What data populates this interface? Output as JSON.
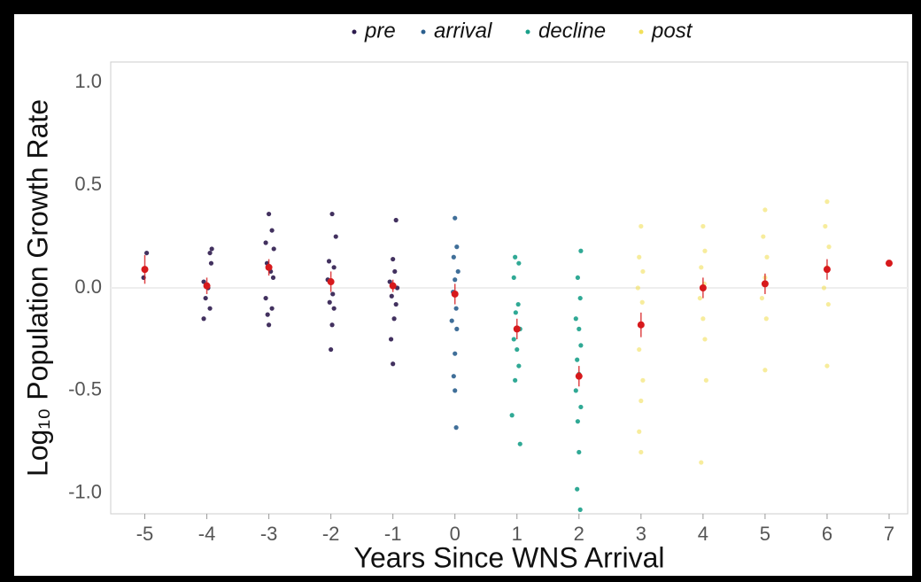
{
  "chart_data": {
    "type": "scatter",
    "x_label": "Years Since WNS Arrival",
    "y_label": "Log₁₀ Population Growth Rate",
    "xlim": [
      -5.55,
      7.3
    ],
    "ylim": [
      -1.1,
      1.1
    ],
    "xticks": [
      -5,
      -4,
      -3,
      -2,
      -1,
      0,
      1,
      2,
      3,
      4,
      5,
      6,
      7
    ],
    "yticks": [
      {
        "value": -1,
        "label": "-1.0"
      },
      {
        "value": -0.5,
        "label": "-0.5"
      },
      {
        "value": 0,
        "label": "0.0"
      },
      {
        "value": 0.5,
        "label": "0.5"
      },
      {
        "value": 1,
        "label": "1.0"
      }
    ],
    "legend": "top",
    "series": [
      {
        "name": "pre",
        "color": "#2d1b4e",
        "x": [
          -4.97,
          -5.02,
          -3.92,
          -3.95,
          -4.05,
          -3.98,
          -4.02,
          -3.95,
          -4.05,
          -3.93,
          -3.0,
          -2.95,
          -3.05,
          -2.92,
          -3.03,
          -2.97,
          -3.05,
          -2.95,
          -3.02,
          -3.0,
          -2.93,
          -1.98,
          -1.92,
          -2.03,
          -1.95,
          -2.05,
          -1.97,
          -2.02,
          -1.95,
          -1.98,
          -2.0,
          -0.95,
          -1.0,
          -0.97,
          -1.05,
          -0.93,
          -1.02,
          -0.98,
          -1.03,
          -1.0,
          -0.95
        ],
        "values": [
          0.17,
          0.05,
          0.19,
          0.17,
          0.03,
          0.0,
          -0.05,
          -0.1,
          -0.15,
          0.12,
          0.36,
          0.28,
          0.22,
          0.19,
          0.12,
          0.08,
          -0.05,
          -0.1,
          -0.13,
          -0.18,
          0.05,
          0.36,
          0.25,
          0.13,
          0.1,
          0.04,
          -0.03,
          -0.07,
          -0.1,
          -0.18,
          -0.3,
          0.33,
          0.14,
          0.08,
          0.03,
          0.0,
          -0.04,
          -0.15,
          -0.25,
          -0.37,
          -0.08
        ]
      },
      {
        "name": "arrival",
        "color": "#2b5f8e",
        "x": [
          0.0,
          0.03,
          -0.02,
          0.05,
          0.0,
          -0.03,
          0.02,
          -0.05,
          0.03,
          0.0,
          -0.02,
          0.0,
          0.02
        ],
        "values": [
          0.34,
          0.2,
          0.15,
          0.08,
          0.04,
          -0.02,
          -0.1,
          -0.16,
          -0.2,
          -0.32,
          -0.43,
          -0.5,
          -0.68
        ]
      },
      {
        "name": "decline",
        "color": "#1aa08a",
        "x": [
          0.97,
          1.03,
          0.95,
          1.02,
          0.98,
          1.05,
          0.95,
          1.0,
          1.03,
          0.97,
          0.92,
          1.05,
          2.03,
          1.98,
          2.02,
          1.95,
          2.0,
          2.03,
          1.97,
          2.0,
          1.95,
          2.03,
          1.98,
          2.0,
          1.97,
          2.02
        ],
        "values": [
          0.15,
          0.12,
          0.05,
          -0.08,
          -0.12,
          -0.2,
          -0.25,
          -0.3,
          -0.38,
          -0.45,
          -0.62,
          -0.76,
          0.18,
          0.05,
          -0.05,
          -0.15,
          -0.2,
          -0.28,
          -0.35,
          -0.42,
          -0.5,
          -0.58,
          -0.65,
          -0.8,
          -0.98,
          -1.08
        ]
      },
      {
        "name": "post",
        "color": "#f2e05a",
        "x": [
          3.0,
          2.97,
          3.03,
          2.95,
          3.02,
          3.0,
          2.97,
          3.03,
          3.0,
          2.97,
          3.0,
          4.0,
          4.03,
          3.97,
          4.02,
          3.95,
          4.0,
          4.03,
          4.05,
          3.97,
          5.0,
          4.97,
          5.03,
          5.0,
          4.95,
          5.02,
          5.0,
          6.0,
          5.97,
          6.03,
          6.0,
          5.95,
          6.02,
          6.0
        ],
        "values": [
          0.3,
          0.15,
          0.08,
          0.0,
          -0.07,
          -0.18,
          -0.3,
          -0.45,
          -0.55,
          -0.7,
          -0.8,
          0.3,
          0.18,
          0.1,
          0.02,
          -0.05,
          -0.15,
          -0.25,
          -0.45,
          -0.85,
          0.38,
          0.25,
          0.15,
          0.05,
          -0.05,
          -0.15,
          -0.4,
          0.42,
          0.3,
          0.2,
          0.1,
          0.0,
          -0.08,
          -0.38
        ]
      }
    ],
    "means": {
      "color": "#d7191c",
      "x": [
        -5,
        -4,
        -3,
        -2,
        -1,
        0,
        1,
        2,
        3,
        4,
        5,
        6,
        7
      ],
      "values": [
        0.09,
        0.01,
        0.1,
        0.03,
        0.01,
        -0.03,
        -0.2,
        -0.43,
        -0.18,
        0.0,
        0.02,
        0.09,
        0.12
      ],
      "errors": [
        0.07,
        0.04,
        0.04,
        0.05,
        0.03,
        0.05,
        0.05,
        0.05,
        0.06,
        0.05,
        0.05,
        0.05,
        0.0
      ]
    }
  }
}
